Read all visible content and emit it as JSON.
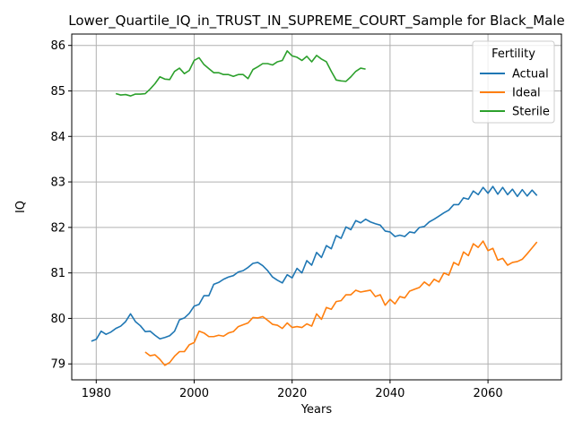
{
  "chart_data": {
    "type": "line",
    "title": "Lower_Quartile_IQ_in_TRUST_IN_SUPREME_COURT_Sample for Black_Male",
    "xlabel": "Years",
    "ylabel": "IQ",
    "xlim": [
      1975,
      2075
    ],
    "ylim": [
      78.65,
      86.25
    ],
    "xticks": [
      1980,
      2000,
      2020,
      2040,
      2060
    ],
    "yticks": [
      79,
      80,
      81,
      82,
      83,
      84,
      85,
      86
    ],
    "grid": true,
    "legend": {
      "title": "Fertility",
      "placement": "top-right"
    },
    "series": [
      {
        "name": "Actual",
        "color": "#1f77b4",
        "x": [
          1979,
          1980,
          1981,
          1982,
          1983,
          1984,
          1985,
          1986,
          1987,
          1988,
          1989,
          1990,
          1991,
          1992,
          1993,
          1994,
          1995,
          1996,
          1997,
          1998,
          1999,
          2000,
          2001,
          2002,
          2003,
          2004,
          2005,
          2006,
          2007,
          2008,
          2009,
          2010,
          2011,
          2012,
          2013,
          2014,
          2015,
          2016,
          2017,
          2018,
          2019,
          2020,
          2021,
          2022,
          2023,
          2024,
          2025,
          2026,
          2027,
          2028,
          2029,
          2030,
          2031,
          2032,
          2033,
          2034,
          2035,
          2036,
          2037,
          2038,
          2039,
          2040,
          2041,
          2042,
          2043,
          2044,
          2045,
          2046,
          2047,
          2048,
          2049,
          2050,
          2051,
          2052,
          2053,
          2054,
          2055,
          2056,
          2057,
          2058,
          2059,
          2060,
          2061,
          2062,
          2063,
          2064,
          2065,
          2066,
          2067,
          2068,
          2069,
          2070
        ],
        "values": [
          79.5,
          79.54,
          79.72,
          79.65,
          79.7,
          79.78,
          79.83,
          79.93,
          80.1,
          79.93,
          79.84,
          79.71,
          79.72,
          79.63,
          79.55,
          79.58,
          79.62,
          79.72,
          79.97,
          80.01,
          80.11,
          80.27,
          80.31,
          80.5,
          80.5,
          80.75,
          80.79,
          80.86,
          80.91,
          80.94,
          81.02,
          81.05,
          81.12,
          81.21,
          81.23,
          81.16,
          81.05,
          80.91,
          80.84,
          80.78,
          80.96,
          80.89,
          81.1,
          81.0,
          81.27,
          81.17,
          81.45,
          81.34,
          81.6,
          81.53,
          81.82,
          81.76,
          82.01,
          81.95,
          82.15,
          82.1,
          82.18,
          82.12,
          82.08,
          82.05,
          81.92,
          81.9,
          81.8,
          81.83,
          81.8,
          81.9,
          81.88,
          82.0,
          82.02,
          82.12,
          82.18,
          82.25,
          82.32,
          82.38,
          82.5,
          82.5,
          82.65,
          82.62,
          82.8,
          82.72,
          82.88,
          82.75,
          82.9,
          82.73,
          82.88,
          82.72,
          82.84,
          82.68,
          82.83,
          82.69,
          82.82,
          82.7
        ]
      },
      {
        "name": "Ideal",
        "color": "#ff7f0e",
        "x": [
          1990,
          1991,
          1992,
          1993,
          1994,
          1995,
          1996,
          1997,
          1998,
          1999,
          2000,
          2001,
          2002,
          2003,
          2004,
          2005,
          2006,
          2007,
          2008,
          2009,
          2010,
          2011,
          2012,
          2013,
          2014,
          2015,
          2016,
          2017,
          2018,
          2019,
          2020,
          2021,
          2022,
          2023,
          2024,
          2025,
          2026,
          2027,
          2028,
          2029,
          2030,
          2031,
          2032,
          2033,
          2034,
          2035,
          2036,
          2037,
          2038,
          2039,
          2040,
          2041,
          2042,
          2043,
          2044,
          2045,
          2046,
          2047,
          2048,
          2049,
          2050,
          2051,
          2052,
          2053,
          2054,
          2055,
          2056,
          2057,
          2058,
          2059,
          2060,
          2061,
          2062,
          2063,
          2064,
          2065,
          2066,
          2067,
          2068,
          2069,
          2070
        ],
        "values": [
          79.26,
          79.18,
          79.2,
          79.1,
          78.97,
          79.03,
          79.17,
          79.27,
          79.27,
          79.42,
          79.47,
          79.72,
          79.68,
          79.6,
          79.6,
          79.63,
          79.61,
          79.68,
          79.71,
          79.82,
          79.86,
          79.9,
          80.02,
          80.01,
          80.04,
          79.96,
          79.87,
          79.85,
          79.78,
          79.9,
          79.8,
          79.82,
          79.8,
          79.88,
          79.83,
          80.1,
          79.98,
          80.24,
          80.2,
          80.37,
          80.39,
          80.52,
          80.52,
          80.62,
          80.58,
          80.6,
          80.62,
          80.48,
          80.52,
          80.29,
          80.42,
          80.32,
          80.48,
          80.45,
          80.6,
          80.64,
          80.68,
          80.8,
          80.72,
          80.86,
          80.8,
          81.0,
          80.95,
          81.23,
          81.17,
          81.46,
          81.38,
          81.64,
          81.56,
          81.7,
          81.49,
          81.54,
          81.28,
          81.32,
          81.17,
          81.23,
          81.25,
          81.3,
          81.42,
          81.55,
          81.68
        ]
      },
      {
        "name": "Sterile",
        "color": "#2ca02c",
        "x": [
          1984,
          1985,
          1986,
          1987,
          1988,
          1989,
          1990,
          1991,
          1992,
          1993,
          1994,
          1995,
          1996,
          1997,
          1998,
          1999,
          2000,
          2001,
          2002,
          2003,
          2004,
          2005,
          2006,
          2007,
          2008,
          2009,
          2010,
          2011,
          2012,
          2013,
          2014,
          2015,
          2016,
          2017,
          2018,
          2019,
          2020,
          2021,
          2022,
          2023,
          2024,
          2025,
          2026,
          2027,
          2028,
          2029,
          2030,
          2031,
          2032,
          2033,
          2034,
          2035
        ],
        "values": [
          84.94,
          84.91,
          84.92,
          84.89,
          84.93,
          84.93,
          84.94,
          85.04,
          85.16,
          85.31,
          85.26,
          85.25,
          85.43,
          85.5,
          85.38,
          85.45,
          85.67,
          85.73,
          85.58,
          85.49,
          85.4,
          85.4,
          85.36,
          85.36,
          85.32,
          85.36,
          85.36,
          85.27,
          85.47,
          85.53,
          85.6,
          85.6,
          85.57,
          85.64,
          85.67,
          85.88,
          85.77,
          85.74,
          85.67,
          85.76,
          85.64,
          85.78,
          85.7,
          85.64,
          85.43,
          85.24,
          85.22,
          85.21,
          85.31,
          85.43,
          85.5,
          85.48
        ]
      }
    ]
  }
}
